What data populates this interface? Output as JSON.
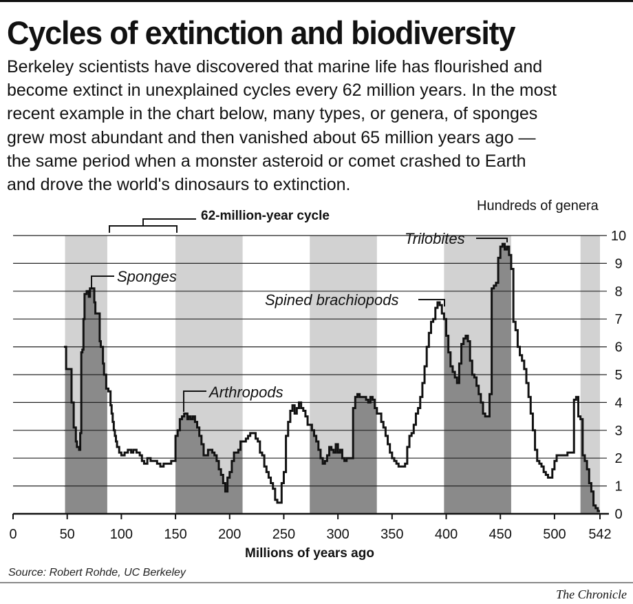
{
  "header": {
    "title": "Cycles of extinction and biodiversity",
    "description_lines": [
      "Berkeley scientists have discovered that marine life has flourished and",
      "become extinct in unexplained cycles every 62 million years. In the most",
      "recent example in the chart below, many types, or genera, of sponges",
      "grew most abundant and then vanished about 65 million years ago —",
      "the same period when a monster asteroid or comet crashed to Earth",
      "and drove the world's dinosaurs to extinction."
    ]
  },
  "footer": {
    "source": "Source: Robert Rohde, UC Berkeley",
    "credit": "The Chronicle"
  },
  "chart_data": {
    "type": "area",
    "xlabel": "Millions of years ago",
    "ylabel": "Hundreds of genera",
    "xlim": [
      0,
      542
    ],
    "ylim": [
      0,
      10
    ],
    "x_ticks": [
      0,
      50,
      100,
      150,
      200,
      250,
      300,
      350,
      400,
      450,
      500,
      542
    ],
    "y_ticks": [
      0,
      1,
      2,
      3,
      4,
      5,
      6,
      7,
      8,
      9,
      10
    ],
    "grid": true,
    "cycle_label": "62-million-year cycle",
    "cycle_bands": [
      [
        48,
        87
      ],
      [
        87,
        150
      ],
      [
        150,
        212
      ],
      [
        212,
        274
      ],
      [
        274,
        336
      ],
      [
        336,
        398
      ],
      [
        398,
        460
      ],
      [
        460,
        524
      ],
      [
        524,
        542
      ]
    ],
    "annotations": [
      {
        "text": "Sponges",
        "x": 72,
        "y": 8.1
      },
      {
        "text": "Arthropods",
        "x": 160,
        "y": 3.7
      },
      {
        "text": "Spined brachiopods",
        "x": 398,
        "y": 7.5
      },
      {
        "text": "Trilobites",
        "x": 455,
        "y": 9.8
      }
    ],
    "series": [
      {
        "values": [
          [
            47,
            6.0
          ],
          [
            48,
            6.0
          ],
          [
            49,
            5.2
          ],
          [
            53,
            5.2
          ],
          [
            54,
            4.0
          ],
          [
            56,
            3.1
          ],
          [
            58,
            2.6
          ],
          [
            59,
            2.4
          ],
          [
            61,
            2.3
          ],
          [
            62,
            2.9
          ],
          [
            63,
            5.8
          ],
          [
            64,
            5.9
          ],
          [
            65,
            7.0
          ],
          [
            66,
            7.9
          ],
          [
            68,
            8.0
          ],
          [
            70,
            7.8
          ],
          [
            71,
            8.1
          ],
          [
            74,
            8.1
          ],
          [
            75,
            7.6
          ],
          [
            76,
            7.2
          ],
          [
            79,
            7.2
          ],
          [
            80,
            6.2
          ],
          [
            81,
            6.0
          ],
          [
            83,
            5.4
          ],
          [
            84,
            5.0
          ],
          [
            86,
            4.5
          ],
          [
            88,
            4.4
          ],
          [
            90,
            3.9
          ],
          [
            91,
            3.6
          ],
          [
            92,
            3.3
          ],
          [
            93,
            3.0
          ],
          [
            94,
            2.8
          ],
          [
            95,
            2.6
          ],
          [
            96,
            2.4
          ],
          [
            98,
            2.2
          ],
          [
            100,
            2.1
          ],
          [
            103,
            2.2
          ],
          [
            106,
            2.3
          ],
          [
            109,
            2.2
          ],
          [
            111,
            2.3
          ],
          [
            114,
            2.2
          ],
          [
            117,
            2.1
          ],
          [
            119,
            1.9
          ],
          [
            121,
            1.8
          ],
          [
            124,
            2.0
          ],
          [
            127,
            1.9
          ],
          [
            130,
            1.9
          ],
          [
            133,
            1.8
          ],
          [
            136,
            1.7
          ],
          [
            139,
            1.8
          ],
          [
            143,
            1.8
          ],
          [
            146,
            1.9
          ],
          [
            148,
            1.9
          ],
          [
            150,
            2.8
          ],
          [
            152,
            3.0
          ],
          [
            154,
            3.4
          ],
          [
            156,
            3.5
          ],
          [
            158,
            3.6
          ],
          [
            159,
            3.6
          ],
          [
            161,
            3.4
          ],
          [
            162,
            3.5
          ],
          [
            164,
            3.4
          ],
          [
            166,
            3.5
          ],
          [
            168,
            3.3
          ],
          [
            170,
            3.1
          ],
          [
            172,
            2.8
          ],
          [
            174,
            2.5
          ],
          [
            176,
            2.1
          ],
          [
            178,
            2.1
          ],
          [
            180,
            2.3
          ],
          [
            182,
            2.3
          ],
          [
            184,
            2.2
          ],
          [
            186,
            2.1
          ],
          [
            188,
            1.9
          ],
          [
            190,
            1.6
          ],
          [
            192,
            1.4
          ],
          [
            194,
            1.1
          ],
          [
            196,
            0.8
          ],
          [
            198,
            1.3
          ],
          [
            200,
            1.5
          ],
          [
            202,
            1.9
          ],
          [
            204,
            2.2
          ],
          [
            206,
            2.2
          ],
          [
            208,
            2.3
          ],
          [
            210,
            2.6
          ],
          [
            212,
            2.6
          ],
          [
            215,
            2.7
          ],
          [
            217,
            2.8
          ],
          [
            219,
            2.9
          ],
          [
            222,
            2.9
          ],
          [
            224,
            2.7
          ],
          [
            226,
            2.6
          ],
          [
            228,
            2.2
          ],
          [
            230,
            2.1
          ],
          [
            232,
            1.7
          ],
          [
            234,
            1.5
          ],
          [
            236,
            1.3
          ],
          [
            238,
            1.1
          ],
          [
            240,
            0.9
          ],
          [
            242,
            0.5
          ],
          [
            244,
            0.4
          ],
          [
            246,
            0.4
          ],
          [
            248,
            1.1
          ],
          [
            250,
            1.5
          ],
          [
            252,
            2.8
          ],
          [
            254,
            3.3
          ],
          [
            256,
            3.7
          ],
          [
            258,
            3.9
          ],
          [
            260,
            3.6
          ],
          [
            262,
            3.8
          ],
          [
            264,
            4.0
          ],
          [
            266,
            3.8
          ],
          [
            268,
            3.7
          ],
          [
            270,
            3.5
          ],
          [
            272,
            3.2
          ],
          [
            274,
            3.2
          ],
          [
            276,
            3.0
          ],
          [
            278,
            2.8
          ],
          [
            280,
            2.6
          ],
          [
            282,
            2.3
          ],
          [
            284,
            2.0
          ],
          [
            286,
            1.8
          ],
          [
            288,
            1.9
          ],
          [
            290,
            2.1
          ],
          [
            292,
            2.4
          ],
          [
            294,
            2.3
          ],
          [
            296,
            2.2
          ],
          [
            298,
            2.5
          ],
          [
            300,
            2.2
          ],
          [
            302,
            2.3
          ],
          [
            304,
            2.0
          ],
          [
            306,
            1.9
          ],
          [
            308,
            2.0
          ],
          [
            310,
            2.0
          ],
          [
            312,
            2.0
          ],
          [
            314,
            3.8
          ],
          [
            316,
            4.2
          ],
          [
            318,
            4.3
          ],
          [
            320,
            4.2
          ],
          [
            322,
            4.2
          ],
          [
            324,
            4.2
          ],
          [
            326,
            4.1
          ],
          [
            328,
            4.0
          ],
          [
            330,
            4.2
          ],
          [
            332,
            4.1
          ],
          [
            334,
            3.8
          ],
          [
            336,
            3.6
          ],
          [
            338,
            3.6
          ],
          [
            340,
            3.3
          ],
          [
            342,
            3.1
          ],
          [
            344,
            2.8
          ],
          [
            346,
            2.5
          ],
          [
            348,
            2.2
          ],
          [
            350,
            2.0
          ],
          [
            352,
            1.9
          ],
          [
            354,
            1.8
          ],
          [
            356,
            1.7
          ],
          [
            358,
            1.7
          ],
          [
            360,
            1.7
          ],
          [
            362,
            1.8
          ],
          [
            364,
            2.4
          ],
          [
            366,
            2.8
          ],
          [
            368,
            2.9
          ],
          [
            370,
            3.2
          ],
          [
            372,
            3.6
          ],
          [
            374,
            3.8
          ],
          [
            376,
            4.2
          ],
          [
            378,
            4.7
          ],
          [
            380,
            5.3
          ],
          [
            382,
            6.0
          ],
          [
            384,
            6.5
          ],
          [
            386,
            6.9
          ],
          [
            388,
            7.0
          ],
          [
            390,
            7.4
          ],
          [
            392,
            7.6
          ],
          [
            394,
            7.5
          ],
          [
            396,
            7.2
          ],
          [
            398,
            7.0
          ],
          [
            400,
            6.4
          ],
          [
            402,
            5.8
          ],
          [
            404,
            5.3
          ],
          [
            406,
            5.1
          ],
          [
            408,
            4.9
          ],
          [
            410,
            4.7
          ],
          [
            412,
            5.4
          ],
          [
            414,
            6.1
          ],
          [
            416,
            6.3
          ],
          [
            418,
            6.4
          ],
          [
            420,
            6.2
          ],
          [
            422,
            5.5
          ],
          [
            424,
            5.0
          ],
          [
            426,
            4.9
          ],
          [
            428,
            4.6
          ],
          [
            430,
            4.3
          ],
          [
            432,
            4.0
          ],
          [
            434,
            3.6
          ],
          [
            436,
            3.5
          ],
          [
            438,
            3.5
          ],
          [
            440,
            4.3
          ],
          [
            442,
            8.1
          ],
          [
            444,
            8.2
          ],
          [
            446,
            8.3
          ],
          [
            448,
            9.2
          ],
          [
            450,
            9.6
          ],
          [
            452,
            9.7
          ],
          [
            454,
            9.5
          ],
          [
            456,
            9.6
          ],
          [
            458,
            9.3
          ],
          [
            460,
            8.8
          ],
          [
            462,
            6.9
          ],
          [
            464,
            6.6
          ],
          [
            466,
            6.0
          ],
          [
            468,
            5.7
          ],
          [
            470,
            5.5
          ],
          [
            472,
            5.2
          ],
          [
            474,
            4.7
          ],
          [
            476,
            4.2
          ],
          [
            478,
            3.6
          ],
          [
            480,
            3.0
          ],
          [
            482,
            2.3
          ],
          [
            484,
            1.9
          ],
          [
            486,
            1.8
          ],
          [
            488,
            1.7
          ],
          [
            490,
            1.5
          ],
          [
            492,
            1.4
          ],
          [
            494,
            1.3
          ],
          [
            496,
            1.3
          ],
          [
            498,
            1.6
          ],
          [
            500,
            1.9
          ],
          [
            502,
            2.1
          ],
          [
            504,
            2.1
          ],
          [
            506,
            2.1
          ],
          [
            508,
            2.1
          ],
          [
            510,
            2.1
          ],
          [
            512,
            2.2
          ],
          [
            514,
            2.2
          ],
          [
            516,
            2.2
          ],
          [
            518,
            4.1
          ],
          [
            520,
            4.2
          ],
          [
            522,
            3.5
          ],
          [
            524,
            3.4
          ],
          [
            526,
            2.1
          ],
          [
            528,
            1.9
          ],
          [
            530,
            1.6
          ],
          [
            532,
            1.1
          ],
          [
            534,
            0.8
          ],
          [
            536,
            0.3
          ],
          [
            538,
            0.2
          ],
          [
            540,
            0.1
          ],
          [
            542,
            0.1
          ]
        ]
      }
    ]
  },
  "colors": {
    "band_gray": "#d2d2d2",
    "area_fill": "#8a8a8a",
    "line": "#111111",
    "grid": "#222222"
  }
}
